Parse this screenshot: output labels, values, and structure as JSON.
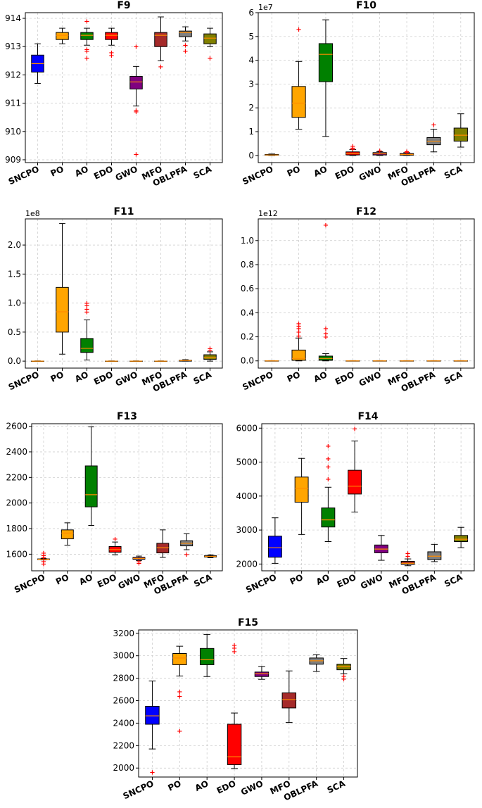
{
  "chart_data": [
    {
      "type": "boxplot",
      "title": "F9",
      "scale_label": "",
      "ylim": [
        908.9,
        914.2
      ],
      "yticks": [
        909,
        910,
        911,
        912,
        913,
        914
      ],
      "ytick_labels": [
        "909",
        "910",
        "911",
        "912",
        "913",
        "914"
      ],
      "categories": [
        "SNCPO",
        "PO",
        "AO",
        "EDO",
        "GWO",
        "MFO",
        "OBLPFA",
        "SCA"
      ],
      "colors": [
        "#0000ff",
        "#ffa500",
        "#008000",
        "#ff0000",
        "#800080",
        "#a52a2a",
        "#808080",
        "#808000"
      ],
      "boxes": [
        {
          "q1": 912.1,
          "median": 912.4,
          "q3": 912.7,
          "whislo": 911.7,
          "whishi": 913.1,
          "fliers": []
        },
        {
          "q1": 913.25,
          "median": 913.4,
          "q3": 913.5,
          "whislo": 913.1,
          "whishi": 913.65,
          "fliers": []
        },
        {
          "q1": 913.25,
          "median": 913.4,
          "q3": 913.5,
          "whislo": 913.05,
          "whishi": 913.65,
          "fliers": [
            913.9,
            912.9,
            912.85,
            912.6
          ]
        },
        {
          "q1": 913.25,
          "median": 913.4,
          "q3": 913.5,
          "whislo": 913.05,
          "whishi": 913.65,
          "fliers": [
            912.8,
            912.7
          ]
        },
        {
          "q1": 911.5,
          "median": 911.75,
          "q3": 911.95,
          "whislo": 910.9,
          "whishi": 912.3,
          "fliers": [
            913.0,
            910.75,
            910.7,
            909.2
          ]
        },
        {
          "q1": 913.0,
          "median": 913.4,
          "q3": 913.5,
          "whislo": 912.5,
          "whishi": 914.05,
          "fliers": [
            912.3
          ]
        },
        {
          "q1": 913.35,
          "median": 913.5,
          "q3": 913.55,
          "whislo": 913.2,
          "whishi": 913.7,
          "fliers": [
            913.05,
            912.85
          ]
        },
        {
          "q1": 913.1,
          "median": 913.3,
          "q3": 913.45,
          "whislo": 913.0,
          "whishi": 913.65,
          "fliers": [
            912.6
          ]
        }
      ]
    },
    {
      "type": "boxplot",
      "title": "F10",
      "scale_label": "1e7",
      "ylim": [
        -0.3,
        6.0
      ],
      "yticks": [
        0,
        1,
        2,
        3,
        4,
        5,
        6
      ],
      "ytick_labels": [
        "0",
        "1",
        "2",
        "3",
        "4",
        "5",
        "6"
      ],
      "categories": [
        "SNCPO",
        "PO",
        "AO",
        "EDO",
        "GWO",
        "MFO",
        "OBLPFA",
        "SCA"
      ],
      "colors": [
        "#0000ff",
        "#ffa500",
        "#008000",
        "#ff0000",
        "#800080",
        "#a52a2a",
        "#808080",
        "#808000"
      ],
      "boxes": [
        {
          "q1": 0.01,
          "median": 0.02,
          "q3": 0.04,
          "whislo": 0.0,
          "whishi": 0.06,
          "fliers": []
        },
        {
          "q1": 1.6,
          "median": 2.2,
          "q3": 2.9,
          "whislo": 1.1,
          "whishi": 3.95,
          "fliers": [
            5.3
          ]
        },
        {
          "q1": 3.1,
          "median": 4.25,
          "q3": 4.7,
          "whislo": 0.8,
          "whishi": 5.7,
          "fliers": []
        },
        {
          "q1": 0.02,
          "median": 0.08,
          "q3": 0.15,
          "whislo": 0.0,
          "whishi": 0.25,
          "fliers": [
            0.4,
            0.32,
            0.27
          ]
        },
        {
          "q1": 0.02,
          "median": 0.07,
          "q3": 0.12,
          "whislo": 0.0,
          "whishi": 0.16,
          "fliers": [
            0.2
          ]
        },
        {
          "q1": 0.01,
          "median": 0.04,
          "q3": 0.08,
          "whislo": 0.0,
          "whishi": 0.12,
          "fliers": [
            0.18,
            0.14
          ]
        },
        {
          "q1": 0.45,
          "median": 0.6,
          "q3": 0.75,
          "whislo": 0.15,
          "whishi": 1.1,
          "fliers": [
            1.3
          ]
        },
        {
          "q1": 0.6,
          "median": 0.85,
          "q3": 1.15,
          "whislo": 0.35,
          "whishi": 1.75,
          "fliers": []
        }
      ]
    },
    {
      "type": "boxplot",
      "title": "F11",
      "scale_label": "1e8",
      "ylim": [
        -0.12,
        2.45
      ],
      "yticks": [
        0,
        0.5,
        1.0,
        1.5,
        2.0
      ],
      "ytick_labels": [
        "0.0",
        "0.5",
        "1.0",
        "1.5",
        "2.0"
      ],
      "categories": [
        "SNCPO",
        "PO",
        "AO",
        "EDO",
        "GWO",
        "MFO",
        "OBLPFA",
        "SCA"
      ],
      "colors": [
        "#0000ff",
        "#ffa500",
        "#008000",
        "#ff0000",
        "#800080",
        "#a52a2a",
        "#808080",
        "#808000"
      ],
      "boxes": [
        {
          "q1": 0.0,
          "median": 0.0,
          "q3": 0.002,
          "whislo": 0.0,
          "whishi": 0.004,
          "fliers": []
        },
        {
          "q1": 0.5,
          "median": 0.85,
          "q3": 1.27,
          "whislo": 0.12,
          "whishi": 2.37,
          "fliers": []
        },
        {
          "q1": 0.15,
          "median": 0.22,
          "q3": 0.39,
          "whislo": 0.02,
          "whishi": 0.71,
          "fliers": [
            1.0,
            0.96,
            0.9,
            0.85
          ]
        },
        {
          "q1": 0.0,
          "median": 0.0,
          "q3": 0.002,
          "whislo": 0.0,
          "whishi": 0.004,
          "fliers": []
        },
        {
          "q1": 0.0,
          "median": 0.0,
          "q3": 0.002,
          "whislo": 0.0,
          "whishi": 0.004,
          "fliers": []
        },
        {
          "q1": 0.0,
          "median": 0.0,
          "q3": 0.002,
          "whislo": 0.0,
          "whishi": 0.004,
          "fliers": []
        },
        {
          "q1": 0.0,
          "median": 0.01,
          "q3": 0.015,
          "whislo": 0.0,
          "whishi": 0.025,
          "fliers": []
        },
        {
          "q1": 0.03,
          "median": 0.06,
          "q3": 0.11,
          "whislo": 0.0,
          "whishi": 0.16,
          "fliers": [
            0.22,
            0.19
          ]
        }
      ]
    },
    {
      "type": "boxplot",
      "title": "F12",
      "scale_label": "1e12",
      "ylim": [
        -0.06,
        1.18
      ],
      "yticks": [
        0,
        0.2,
        0.4,
        0.6,
        0.8,
        1.0
      ],
      "ytick_labels": [
        "0.0",
        "0.2",
        "0.4",
        "0.6",
        "0.8",
        "1.0"
      ],
      "categories": [
        "SNCPO",
        "PO",
        "AO",
        "EDO",
        "GWO",
        "MFO",
        "OBLPFA",
        "SCA"
      ],
      "colors": [
        "#0000ff",
        "#ffa500",
        "#008000",
        "#ff0000",
        "#800080",
        "#a52a2a",
        "#808080",
        "#808000"
      ],
      "boxes": [
        {
          "q1": 0.0,
          "median": 0.0,
          "q3": 0.001,
          "whislo": 0.0,
          "whishi": 0.002,
          "fliers": []
        },
        {
          "q1": 0.005,
          "median": 0.02,
          "q3": 0.09,
          "whislo": 0.0,
          "whishi": 0.19,
          "fliers": [
            0.31,
            0.29,
            0.27,
            0.24,
            0.21
          ]
        },
        {
          "q1": 0.005,
          "median": 0.02,
          "q3": 0.04,
          "whislo": 0.0,
          "whishi": 0.06,
          "fliers": [
            1.13,
            0.27,
            0.23,
            0.2
          ]
        },
        {
          "q1": 0.0,
          "median": 0.0,
          "q3": 0.001,
          "whislo": 0.0,
          "whishi": 0.002,
          "fliers": []
        },
        {
          "q1": 0.0,
          "median": 0.0,
          "q3": 0.001,
          "whislo": 0.0,
          "whishi": 0.002,
          "fliers": []
        },
        {
          "q1": 0.0,
          "median": 0.0,
          "q3": 0.001,
          "whislo": 0.0,
          "whishi": 0.002,
          "fliers": []
        },
        {
          "q1": 0.0,
          "median": 0.0,
          "q3": 0.001,
          "whislo": 0.0,
          "whishi": 0.002,
          "fliers": []
        },
        {
          "q1": 0.0,
          "median": 0.0,
          "q3": 0.001,
          "whislo": 0.0,
          "whishi": 0.002,
          "fliers": []
        }
      ]
    },
    {
      "type": "boxplot",
      "title": "F13",
      "scale_label": "",
      "ylim": [
        1470,
        2620
      ],
      "yticks": [
        1600,
        1800,
        2000,
        2200,
        2400,
        2600
      ],
      "ytick_labels": [
        "1600",
        "1800",
        "2000",
        "2200",
        "2400",
        "2600"
      ],
      "categories": [
        "SNCPO",
        "PO",
        "AO",
        "EDO",
        "GWO",
        "MFO",
        "OBLPFA",
        "SCA"
      ],
      "colors": [
        "#0000ff",
        "#ffa500",
        "#008000",
        "#ff0000",
        "#800080",
        "#a52a2a",
        "#808080",
        "#808000"
      ],
      "boxes": [
        {
          "q1": 1558,
          "median": 1560,
          "q3": 1563,
          "whislo": 1555,
          "whishi": 1566,
          "fliers": [
            1610,
            1590,
            1575,
            1545,
            1525
          ]
        },
        {
          "q1": 1720,
          "median": 1765,
          "q3": 1790,
          "whislo": 1670,
          "whishi": 1845,
          "fliers": []
        },
        {
          "q1": 1970,
          "median": 2065,
          "q3": 2290,
          "whislo": 1825,
          "whishi": 2595,
          "fliers": []
        },
        {
          "q1": 1615,
          "median": 1635,
          "q3": 1660,
          "whislo": 1595,
          "whishi": 1695,
          "fliers": [
            1720
          ]
        },
        {
          "q1": 1560,
          "median": 1567,
          "q3": 1575,
          "whislo": 1550,
          "whishi": 1585,
          "fliers": [
            1545,
            1530
          ]
        },
        {
          "q1": 1610,
          "median": 1650,
          "q3": 1685,
          "whislo": 1575,
          "whishi": 1790,
          "fliers": []
        },
        {
          "q1": 1665,
          "median": 1685,
          "q3": 1705,
          "whislo": 1635,
          "whishi": 1760,
          "fliers": [
            1600
          ]
        },
        {
          "q1": 1578,
          "median": 1583,
          "q3": 1588,
          "whislo": 1572,
          "whishi": 1595,
          "fliers": []
        }
      ]
    },
    {
      "type": "boxplot",
      "title": "F14",
      "scale_label": "",
      "ylim": [
        1800,
        6130
      ],
      "yticks": [
        2000,
        3000,
        4000,
        5000,
        6000
      ],
      "ytick_labels": [
        "2000",
        "3000",
        "4000",
        "5000",
        "6000"
      ],
      "categories": [
        "SNCPO",
        "PO",
        "AO",
        "EDO",
        "GWO",
        "MFO",
        "OBLPFA",
        "SCA"
      ],
      "colors": [
        "#0000ff",
        "#ffa500",
        "#008000",
        "#ff0000",
        "#800080",
        "#a52a2a",
        "#808080",
        "#808000"
      ],
      "boxes": [
        {
          "q1": 2200,
          "median": 2480,
          "q3": 2820,
          "whislo": 2020,
          "whishi": 3360,
          "fliers": []
        },
        {
          "q1": 3820,
          "median": 4230,
          "q3": 4560,
          "whislo": 2870,
          "whishi": 5110,
          "fliers": []
        },
        {
          "q1": 3090,
          "median": 3300,
          "q3": 3650,
          "whislo": 2660,
          "whishi": 4260,
          "fliers": [
            5480,
            5100,
            4870,
            4500
          ]
        },
        {
          "q1": 4060,
          "median": 4290,
          "q3": 4760,
          "whislo": 3530,
          "whishi": 5620,
          "fliers": [
            5980
          ]
        },
        {
          "q1": 2330,
          "median": 2440,
          "q3": 2560,
          "whislo": 2110,
          "whishi": 2840,
          "fliers": []
        },
        {
          "q1": 1990,
          "median": 2020,
          "q3": 2080,
          "whislo": 1950,
          "whishi": 2150,
          "fliers": [
            2320,
            2230
          ]
        },
        {
          "q1": 2130,
          "median": 2230,
          "q3": 2360,
          "whislo": 2070,
          "whishi": 2580,
          "fliers": []
        },
        {
          "q1": 2660,
          "median": 2730,
          "q3": 2840,
          "whislo": 2480,
          "whishi": 3080,
          "fliers": []
        }
      ]
    },
    {
      "type": "boxplot",
      "title": "F15",
      "scale_label": "",
      "ylim": [
        1920,
        3230
      ],
      "yticks": [
        2000,
        2200,
        2400,
        2600,
        2800,
        3000,
        3200
      ],
      "ytick_labels": [
        "2000",
        "2200",
        "2400",
        "2600",
        "2800",
        "3000",
        "3200"
      ],
      "categories": [
        "SNCPO",
        "PO",
        "AO",
        "EDO",
        "GWO",
        "MFO",
        "OBLPFA",
        "SCA"
      ],
      "colors": [
        "#0000ff",
        "#ffa500",
        "#008000",
        "#ff0000",
        "#800080",
        "#a52a2a",
        "#808080",
        "#808000"
      ],
      "boxes": [
        {
          "q1": 2390,
          "median": 2465,
          "q3": 2550,
          "whislo": 2170,
          "whishi": 2775,
          "fliers": [
            1965
          ]
        },
        {
          "q1": 2920,
          "median": 2980,
          "q3": 3020,
          "whislo": 2820,
          "whishi": 3085,
          "fliers": [
            2680,
            2640,
            2330
          ]
        },
        {
          "q1": 2920,
          "median": 2965,
          "q3": 3065,
          "whislo": 2815,
          "whishi": 3190,
          "fliers": []
        },
        {
          "q1": 2030,
          "median": 2100,
          "q3": 2390,
          "whislo": 1995,
          "whishi": 2490,
          "fliers": [
            3095,
            3070,
            3040
          ]
        },
        {
          "q1": 2815,
          "median": 2840,
          "q3": 2855,
          "whislo": 2790,
          "whishi": 2905,
          "fliers": []
        },
        {
          "q1": 2535,
          "median": 2610,
          "q3": 2670,
          "whislo": 2405,
          "whishi": 2865,
          "fliers": []
        },
        {
          "q1": 2925,
          "median": 2955,
          "q3": 2980,
          "whislo": 2860,
          "whishi": 3010,
          "fliers": []
        },
        {
          "q1": 2875,
          "median": 2905,
          "q3": 2925,
          "whislo": 2840,
          "whishi": 2975,
          "fliers": [
            2820,
            2795
          ]
        }
      ]
    }
  ]
}
